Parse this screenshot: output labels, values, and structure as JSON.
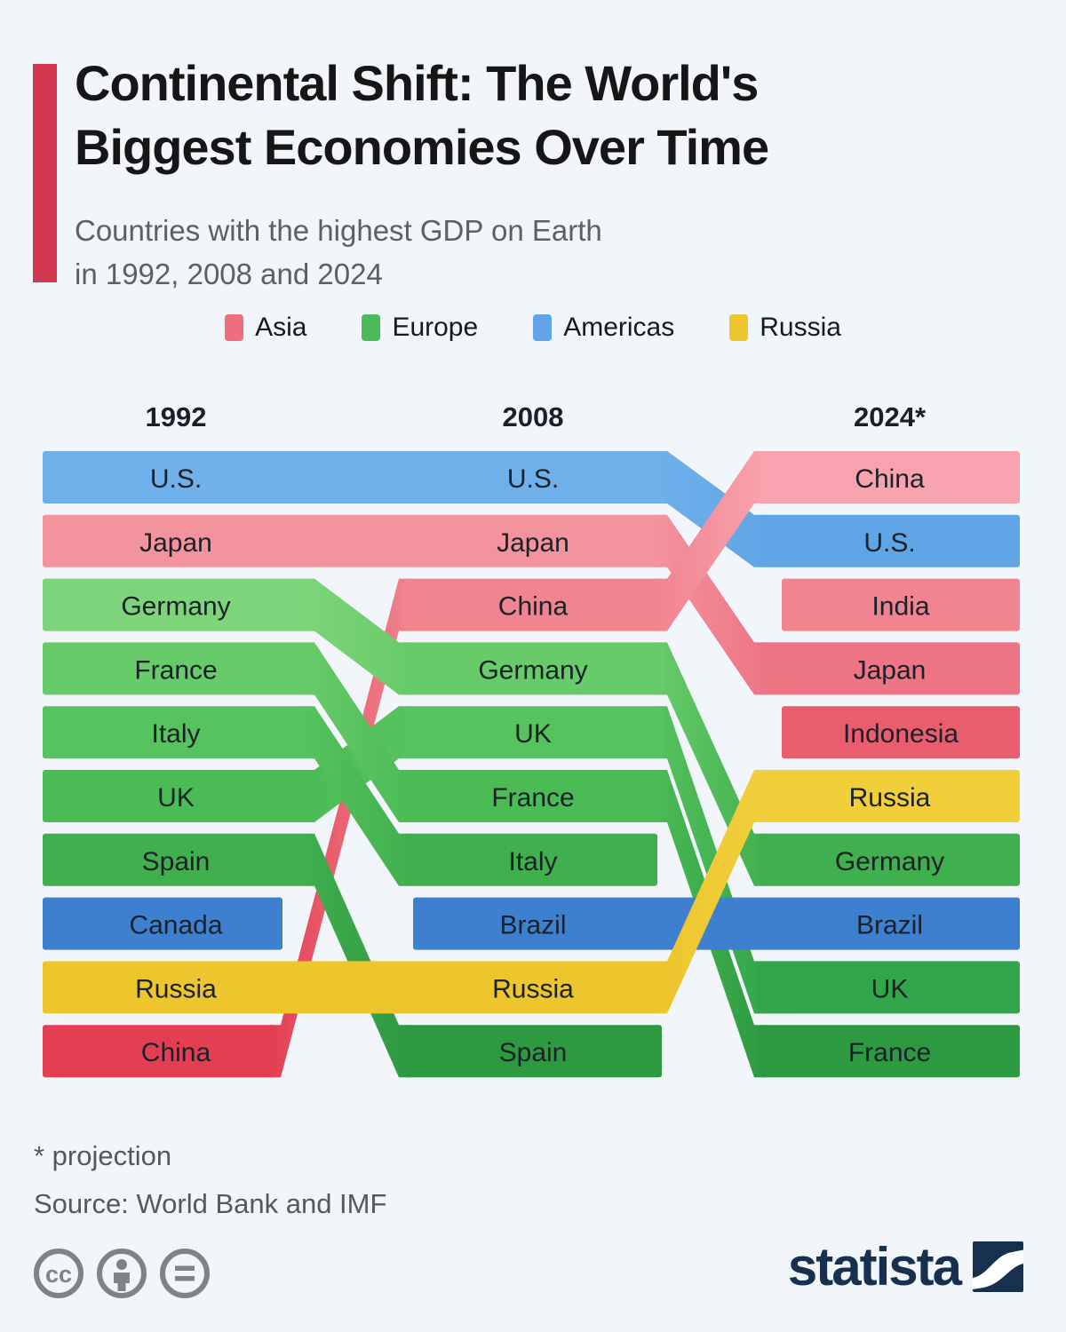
{
  "header": {
    "title": "Continental Shift: The World's\nBiggest Economies Over Time",
    "subtitle": "Countries with the highest GDP on Earth\nin 1992, 2008 and 2024",
    "accent_color": "#d23750",
    "background_color": "#f2f6fa"
  },
  "legend": [
    {
      "label": "Asia",
      "color": "#ee6e7d"
    },
    {
      "label": "Europe",
      "color": "#4cb95a"
    },
    {
      "label": "Americas",
      "color": "#61a3e4"
    },
    {
      "label": "Russia",
      "color": "#edc52d"
    }
  ],
  "chart_data": {
    "type": "bump",
    "title": "Countries with the highest GDP on Earth in 1992, 2008 and 2024",
    "years": [
      "1992",
      "2008",
      "2024*"
    ],
    "rankings": {
      "1992": [
        "U.S.",
        "Japan",
        "Germany",
        "France",
        "Italy",
        "UK",
        "Spain",
        "Canada",
        "Russia",
        "China"
      ],
      "2008": [
        "U.S.",
        "Japan",
        "China",
        "Germany",
        "UK",
        "France",
        "Italy",
        "Brazil",
        "Russia",
        "Spain"
      ],
      "2024": [
        "China",
        "U.S.",
        "India",
        "Japan",
        "Indonesia",
        "Russia",
        "Germany",
        "Brazil",
        "UK",
        "France"
      ]
    },
    "countries": [
      {
        "name": "U.S.",
        "continent": "americas",
        "ranks": [
          1,
          1,
          2
        ]
      },
      {
        "name": "Japan",
        "continent": "asia",
        "ranks": [
          2,
          2,
          4
        ]
      },
      {
        "name": "Germany",
        "continent": "europe",
        "ranks": [
          3,
          4,
          7
        ]
      },
      {
        "name": "France",
        "continent": "europe",
        "ranks": [
          4,
          6,
          10
        ]
      },
      {
        "name": "Italy",
        "continent": "europe",
        "ranks": [
          5,
          7,
          null
        ]
      },
      {
        "name": "UK",
        "continent": "europe",
        "ranks": [
          6,
          5,
          9
        ]
      },
      {
        "name": "Spain",
        "continent": "europe",
        "ranks": [
          7,
          10,
          null
        ]
      },
      {
        "name": "Canada",
        "continent": "americas",
        "ranks": [
          8,
          null,
          null
        ]
      },
      {
        "name": "Russia",
        "continent": "russia",
        "ranks": [
          9,
          9,
          6
        ]
      },
      {
        "name": "China",
        "continent": "asia",
        "ranks": [
          10,
          3,
          1
        ]
      },
      {
        "name": "Brazil",
        "continent": "americas",
        "ranks": [
          null,
          8,
          8
        ]
      },
      {
        "name": "India",
        "continent": "asia",
        "ranks": [
          null,
          null,
          3
        ]
      },
      {
        "name": "Indonesia",
        "continent": "asia",
        "ranks": [
          null,
          null,
          5
        ]
      }
    ],
    "legend_position": "top",
    "grid": false
  },
  "palette": {
    "asia": {
      "1": "#f7a3ad",
      "2": "#f3939e",
      "3": "#f0848f",
      "4": "#ee7583",
      "5": "#e95d6e",
      "10": "#e33e52"
    },
    "europe": {
      "3": "#7ed47a",
      "4": "#68cb69",
      "5": "#57c35e",
      "6": "#4bbb55",
      "7": "#40af4d",
      "9": "#32a449",
      "10": "#2d9941"
    },
    "americas": {
      "1": "#6fb0ea",
      "2": "#60a6e6",
      "8": "#3e80d0"
    },
    "russia": {
      "6": "#f0cf3b",
      "9": "#edc52d"
    }
  },
  "footer": {
    "footnote": "* projection",
    "source": "Source: World Bank and IMF",
    "license_icons": [
      "cc-icon",
      "attribution-icon",
      "no-derivatives-icon"
    ],
    "cc_glyph": "cc",
    "brand_wordmark": "statista",
    "brand_color": "#17304e"
  }
}
